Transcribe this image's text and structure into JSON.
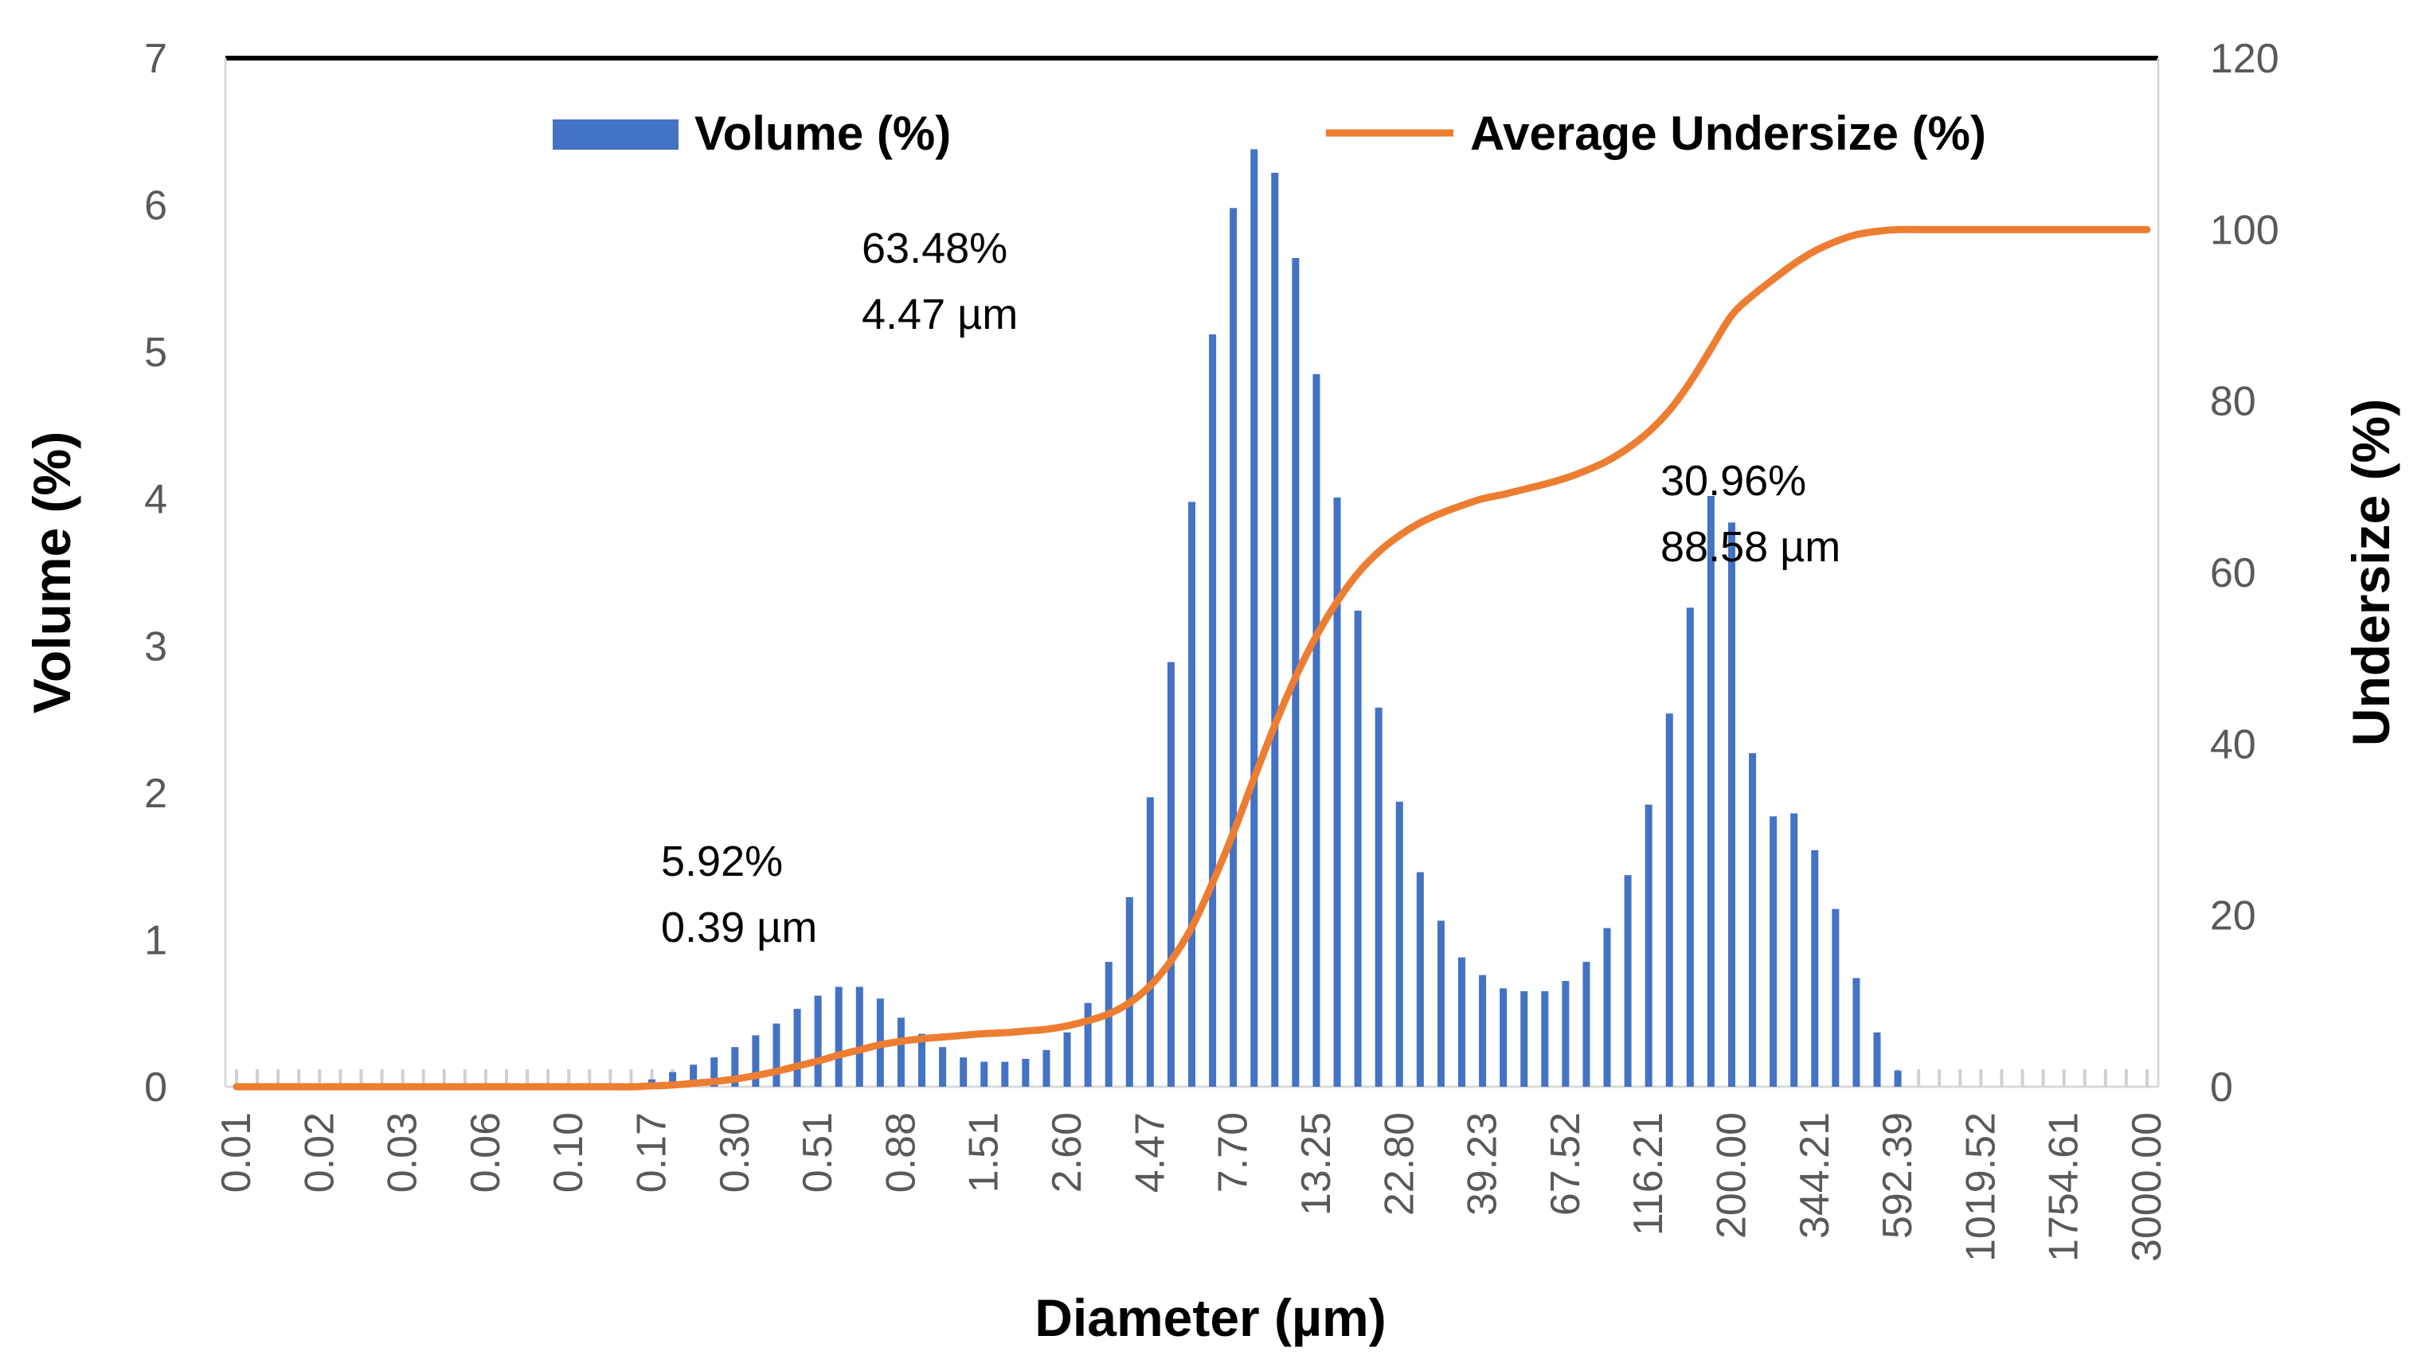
{
  "chart_data": {
    "type": "bar+line",
    "title": "",
    "xlabel": "Diameter (µm)",
    "ylabel": "Volume (%)",
    "y2label": "Undersize (%)",
    "ylim": [
      0,
      7
    ],
    "y2lim": [
      0,
      120
    ],
    "yticks": [
      "0",
      "1",
      "2",
      "3",
      "4",
      "5",
      "6",
      "7"
    ],
    "y2ticks": [
      "0",
      "20",
      "40",
      "60",
      "80",
      "100",
      "120"
    ],
    "x_tick_labels": [
      "0.01",
      "0.02",
      "0.03",
      "0.06",
      "0.10",
      "0.17",
      "0.30",
      "0.51",
      "0.88",
      "1.51",
      "2.60",
      "4.47",
      "7.70",
      "13.25",
      "22.80",
      "39.23",
      "67.52",
      "116.21",
      "200.00",
      "344.21",
      "592.39",
      "1019.52",
      "1754.61",
      "3000.00"
    ],
    "bins_per_label": 4,
    "legend": [
      {
        "name": "Volume (%)",
        "color": "#4472C4",
        "kind": "bar"
      },
      {
        "name": "Average Undersize (%)",
        "color": "#ED7D31",
        "kind": "line"
      }
    ],
    "series": [
      {
        "name": "Volume (%)",
        "axis": "left",
        "values": [
          0,
          0,
          0,
          0,
          0,
          0,
          0,
          0,
          0,
          0,
          0,
          0,
          0,
          0,
          0,
          0,
          0,
          0,
          0,
          0,
          0.05,
          0.1,
          0.15,
          0.2,
          0.27,
          0.35,
          0.43,
          0.53,
          0.62,
          0.68,
          0.68,
          0.6,
          0.47,
          0.36,
          0.27,
          0.2,
          0.17,
          0.17,
          0.19,
          0.25,
          0.37,
          0.57,
          0.85,
          1.29,
          1.97,
          2.89,
          3.98,
          5.12,
          5.98,
          6.38,
          6.22,
          5.64,
          4.85,
          4.01,
          3.24,
          2.58,
          1.94,
          1.46,
          1.13,
          0.88,
          0.76,
          0.67,
          0.65,
          0.65,
          0.72,
          0.85,
          1.08,
          1.44,
          1.92,
          2.54,
          3.26,
          4.02,
          3.84,
          2.27,
          1.84,
          1.86,
          1.61,
          1.21,
          0.74,
          0.37,
          0.11,
          0,
          0,
          0,
          0,
          0,
          0,
          0,
          0,
          0,
          0,
          0,
          0
        ]
      },
      {
        "name": "Average Undersize (%)",
        "axis": "right",
        "values": [
          0,
          0,
          0,
          0,
          0,
          0,
          0,
          0,
          0,
          0,
          0,
          0,
          0,
          0,
          0,
          0,
          0,
          0,
          0,
          0,
          0.1,
          0.2,
          0.4,
          0.6,
          0.9,
          1.3,
          1.8,
          2.4,
          3.0,
          3.7,
          4.3,
          4.9,
          5.3,
          5.6,
          5.8,
          6.0,
          6.2,
          6.3,
          6.5,
          6.7,
          7.1,
          7.7,
          8.5,
          9.8,
          11.8,
          14.7,
          18.6,
          23.8,
          29.6,
          36.0,
          42.2,
          47.8,
          52.6,
          56.6,
          59.9,
          62.4,
          64.3,
          65.8,
          66.9,
          67.8,
          68.6,
          69.1,
          69.7,
          70.3,
          71.0,
          71.9,
          73.0,
          74.5,
          76.4,
          78.9,
          82.2,
          86.1,
          90.0,
          92.3,
          94.2,
          96.0,
          97.5,
          98.6,
          99.4,
          99.8,
          100,
          100,
          100,
          100,
          100,
          100,
          100,
          100,
          100,
          100,
          100,
          100,
          100
        ]
      }
    ],
    "annotations": [
      {
        "percent": "5.92%",
        "size": "0.39 µm"
      },
      {
        "percent": "63.48%",
        "size": "4.47 µm"
      },
      {
        "percent": "30.96%",
        "size": "88.58 µm"
      }
    ]
  }
}
